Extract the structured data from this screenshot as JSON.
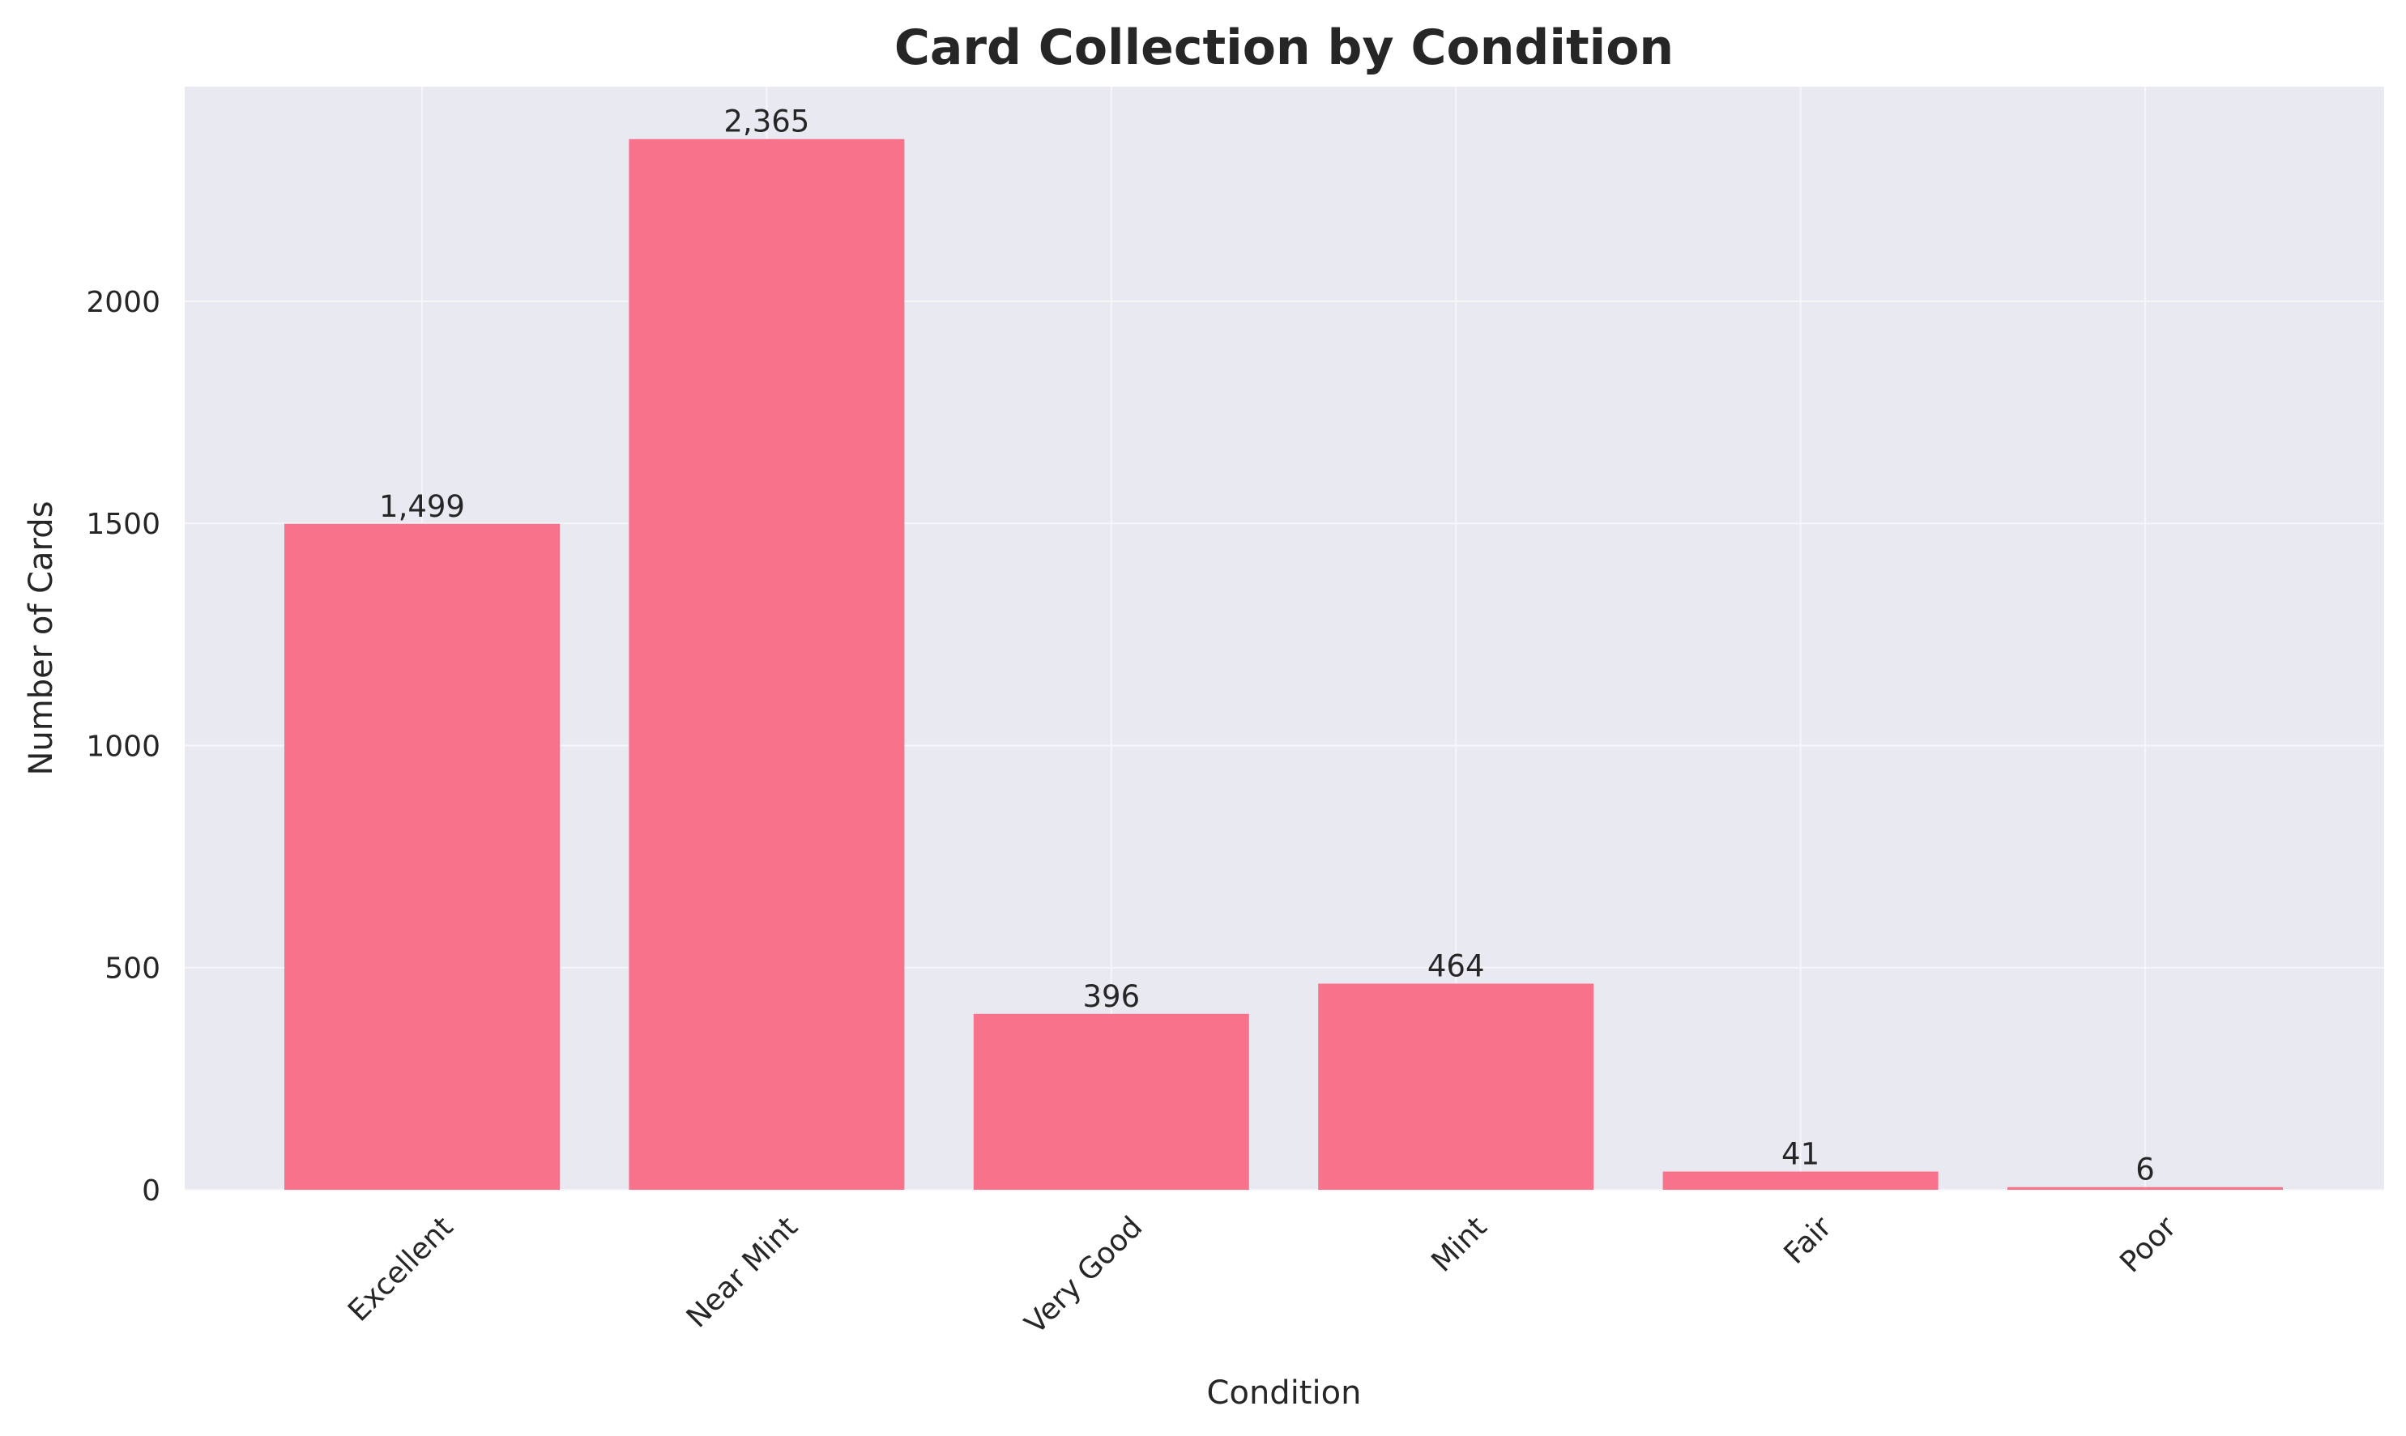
{
  "chart_data": {
    "type": "bar",
    "title": "Card Collection by Condition",
    "xlabel": "Condition",
    "ylabel": "Number of Cards",
    "categories": [
      "Excellent",
      "Near Mint",
      "Very Good",
      "Mint",
      "Fair",
      "Poor"
    ],
    "values": [
      1499,
      2365,
      396,
      464,
      41,
      6
    ],
    "value_labels": [
      "1,499",
      "2,365",
      "396",
      "464",
      "41",
      "6"
    ],
    "ylim": [
      0,
      2483
    ],
    "yticks": [
      0,
      500,
      1000,
      1500,
      2000
    ],
    "ytick_labels": [
      "0",
      "500",
      "1000",
      "1500",
      "2000"
    ],
    "grid": true,
    "legend": "none",
    "colors": {
      "bar": "#f7728a",
      "plot_background": "#e9e9f2",
      "grid": "#f6f6f9",
      "text": "#262626"
    }
  }
}
